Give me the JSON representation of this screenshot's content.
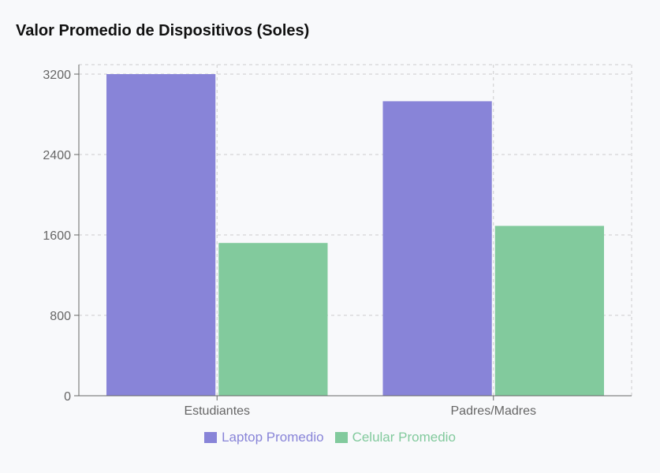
{
  "chart_data": {
    "type": "bar",
    "title": "Valor Promedio de Dispositivos (Soles)",
    "categories": [
      "Estudiantes",
      "Padres/Madres"
    ],
    "series": [
      {
        "name": "Laptop Promedio",
        "color": "#8884d8",
        "values": [
          3200,
          2930
        ]
      },
      {
        "name": "Celular Promedio",
        "color": "#82ca9d",
        "values": [
          1520,
          1690
        ]
      }
    ],
    "yticks": [
      0,
      800,
      1600,
      2400,
      3200
    ],
    "ylim": [
      0,
      3200
    ],
    "grid": true,
    "legend_position": "bottom-center",
    "xlabel": "",
    "ylabel": ""
  }
}
